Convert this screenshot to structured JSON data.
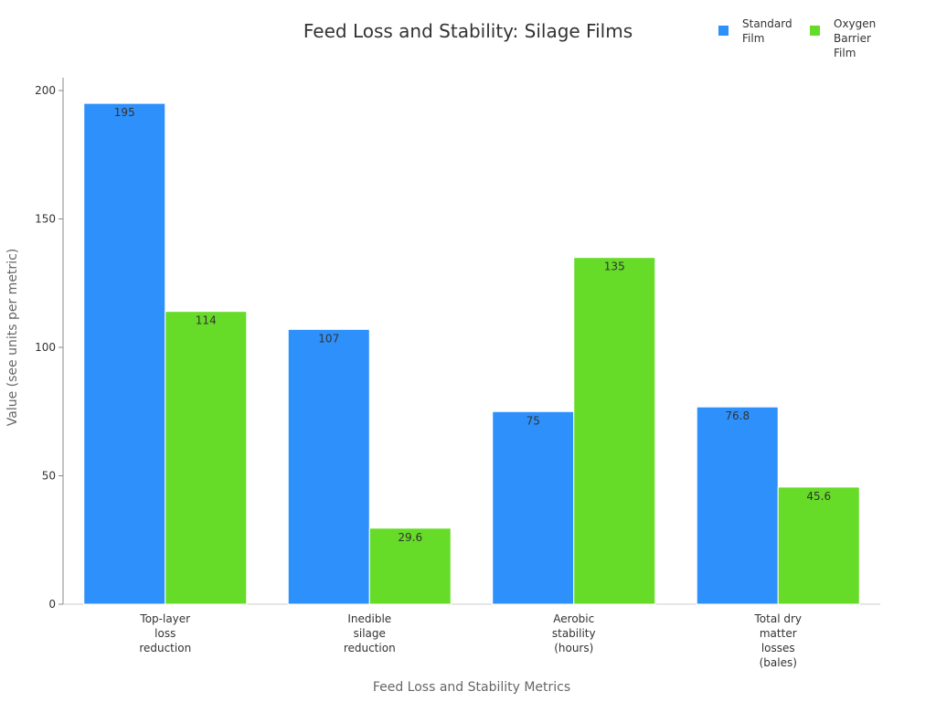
{
  "chart_data": {
    "type": "bar",
    "title": "Feed Loss and Stability: Silage Films",
    "xlabel": "Feed Loss and Stability Metrics",
    "ylabel": "Value (see units per metric)",
    "categories": [
      [
        "Top-layer",
        "loss",
        "reduction"
      ],
      [
        "Inedible",
        "silage",
        "reduction"
      ],
      [
        "Aerobic",
        "stability",
        "(hours)"
      ],
      [
        "Total dry",
        "matter",
        "losses",
        "(bales)"
      ]
    ],
    "series": [
      {
        "name": "Standard Film",
        "color": "#2e90fa",
        "values": [
          195,
          107,
          75,
          76.8
        ],
        "labels": [
          "195",
          "107",
          "75",
          "76.8"
        ]
      },
      {
        "name": "Oxygen Barrier Film",
        "color": "#66db28",
        "values": [
          114,
          29.6,
          135,
          45.6
        ],
        "labels": [
          "114",
          "29.6",
          "135",
          "45.6"
        ]
      }
    ],
    "ylim": [
      0,
      205
    ],
    "yticks": [
      0,
      50,
      100,
      150,
      200
    ],
    "legend_position": "top-right",
    "grid": false
  }
}
